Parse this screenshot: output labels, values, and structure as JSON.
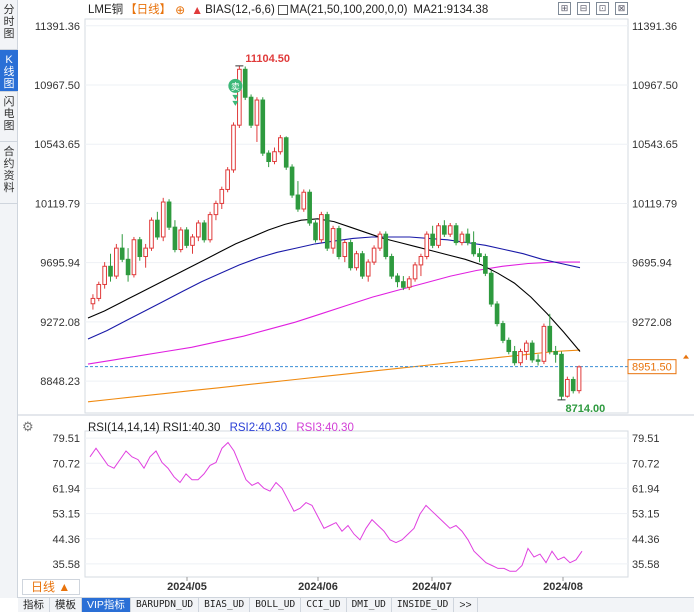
{
  "side_tabs": [
    {
      "label": "分时图"
    },
    {
      "label": "K线图"
    },
    {
      "label": "闪电图"
    },
    {
      "label": "合约资料"
    }
  ],
  "info": {
    "symbol": "LME铜",
    "period": "【日线】",
    "bias": "BIAS(12,-6,6)",
    "ma": "MA(21,50,100,200,0,0)",
    "ma21": "MA21:9134.38"
  },
  "top_tools": [
    {
      "icon": "zoom-in-icon",
      "glyph": "⊞"
    },
    {
      "icon": "zoom-out-icon",
      "glyph": "⊟"
    },
    {
      "icon": "restore-icon",
      "glyph": "⊡"
    },
    {
      "icon": "fullscreen-icon",
      "glyph": "⊠"
    }
  ],
  "price_axis": {
    "left_ticks": [
      "11391.36",
      "10967.50",
      "10543.65",
      "10119.79",
      "9695.94",
      "9272.08",
      "8848.23"
    ],
    "right_ticks": [
      "11391.36",
      "10967.50",
      "10543.65",
      "10119.79",
      "9695.94",
      "9272.08"
    ],
    "current_price": "8951.50",
    "high_label": "11104.50",
    "low_label": "8714.00",
    "sell_marker": "卖"
  },
  "rsi": {
    "title": "RSI(14,14,14)",
    "rsi1": "RSI1:40.30",
    "rsi2": "RSI2:40.30",
    "rsi3": "RSI3:40.30",
    "ticks": [
      "79.51",
      "70.72",
      "61.94",
      "53.15",
      "44.36",
      "35.58"
    ]
  },
  "x_axis": {
    "labels": [
      "2024/05",
      "2024/06",
      "2024/07",
      "2024/08"
    ]
  },
  "period_button": "日线 ▲",
  "bottom_tabs": [
    "指标",
    "模板",
    "VIP指标",
    "BARUPDN_UD",
    "BIAS_UD",
    "BOLL_UD",
    "CCI_UD",
    "DMI_UD",
    "INSIDE_UD",
    ">>"
  ],
  "colors": {
    "up": "#e03b3b",
    "down": "#2e9a3f",
    "ma21": "#000000",
    "ma50": "#1a1aa8",
    "ma100": "#e020e0",
    "ma200": "#f08a10",
    "rsi": "#e040e0",
    "price_line": "#3a8fd6",
    "accent": "#2a6fd6"
  },
  "chart_data": {
    "type": "candlestick",
    "ylim": [
      8620,
      11440
    ],
    "candles": [
      {
        "o": 9402,
        "h": 9470,
        "l": 9360,
        "c": 9440
      },
      {
        "o": 9440,
        "h": 9560,
        "l": 9420,
        "c": 9540
      },
      {
        "o": 9540,
        "h": 9700,
        "l": 9510,
        "c": 9670
      },
      {
        "o": 9670,
        "h": 9760,
        "l": 9560,
        "c": 9600
      },
      {
        "o": 9600,
        "h": 9830,
        "l": 9580,
        "c": 9800
      },
      {
        "o": 9800,
        "h": 9900,
        "l": 9700,
        "c": 9720
      },
      {
        "o": 9720,
        "h": 9800,
        "l": 9560,
        "c": 9610
      },
      {
        "o": 9610,
        "h": 9880,
        "l": 9590,
        "c": 9860
      },
      {
        "o": 9860,
        "h": 9880,
        "l": 9710,
        "c": 9740
      },
      {
        "o": 9740,
        "h": 9830,
        "l": 9660,
        "c": 9800
      },
      {
        "o": 9800,
        "h": 10020,
        "l": 9780,
        "c": 10000
      },
      {
        "o": 10000,
        "h": 10060,
        "l": 9860,
        "c": 9880
      },
      {
        "o": 9880,
        "h": 10160,
        "l": 9850,
        "c": 10130
      },
      {
        "o": 10130,
        "h": 10150,
        "l": 9930,
        "c": 9950
      },
      {
        "o": 9950,
        "h": 10000,
        "l": 9770,
        "c": 9790
      },
      {
        "o": 9790,
        "h": 9950,
        "l": 9770,
        "c": 9930
      },
      {
        "o": 9930,
        "h": 9950,
        "l": 9800,
        "c": 9820
      },
      {
        "o": 9820,
        "h": 9900,
        "l": 9760,
        "c": 9880
      },
      {
        "o": 9880,
        "h": 10000,
        "l": 9850,
        "c": 9980
      },
      {
        "o": 9980,
        "h": 10000,
        "l": 9840,
        "c": 9860
      },
      {
        "o": 9860,
        "h": 10060,
        "l": 9840,
        "c": 10040
      },
      {
        "o": 10040,
        "h": 10140,
        "l": 10000,
        "c": 10120
      },
      {
        "o": 10120,
        "h": 10240,
        "l": 10080,
        "c": 10220
      },
      {
        "o": 10220,
        "h": 10380,
        "l": 10200,
        "c": 10360
      },
      {
        "o": 10360,
        "h": 10700,
        "l": 10340,
        "c": 10680
      },
      {
        "o": 10680,
        "h": 11104.5,
        "l": 10660,
        "c": 11080
      },
      {
        "o": 11080,
        "h": 11100,
        "l": 10860,
        "c": 10880
      },
      {
        "o": 10880,
        "h": 10900,
        "l": 10660,
        "c": 10680
      },
      {
        "o": 10680,
        "h": 10880,
        "l": 10560,
        "c": 10860
      },
      {
        "o": 10860,
        "h": 10880,
        "l": 10460,
        "c": 10480
      },
      {
        "o": 10480,
        "h": 10500,
        "l": 10380,
        "c": 10420
      },
      {
        "o": 10420,
        "h": 10520,
        "l": 10400,
        "c": 10490
      },
      {
        "o": 10490,
        "h": 10610,
        "l": 10470,
        "c": 10590
      },
      {
        "o": 10590,
        "h": 10600,
        "l": 10360,
        "c": 10380
      },
      {
        "o": 10380,
        "h": 10400,
        "l": 10160,
        "c": 10180
      },
      {
        "o": 10180,
        "h": 10280,
        "l": 10060,
        "c": 10080
      },
      {
        "o": 10080,
        "h": 10220,
        "l": 10060,
        "c": 10200
      },
      {
        "o": 10200,
        "h": 10220,
        "l": 9960,
        "c": 9980
      },
      {
        "o": 9980,
        "h": 10000,
        "l": 9840,
        "c": 9860
      },
      {
        "o": 9860,
        "h": 10060,
        "l": 9840,
        "c": 10040
      },
      {
        "o": 10040,
        "h": 10060,
        "l": 9780,
        "c": 9800
      },
      {
        "o": 9800,
        "h": 9960,
        "l": 9760,
        "c": 9940
      },
      {
        "o": 9940,
        "h": 9960,
        "l": 9720,
        "c": 9740
      },
      {
        "o": 9740,
        "h": 9860,
        "l": 9700,
        "c": 9840
      },
      {
        "o": 9840,
        "h": 9860,
        "l": 9640,
        "c": 9660
      },
      {
        "o": 9660,
        "h": 9780,
        "l": 9640,
        "c": 9760
      },
      {
        "o": 9760,
        "h": 9780,
        "l": 9580,
        "c": 9600
      },
      {
        "o": 9600,
        "h": 9720,
        "l": 9560,
        "c": 9700
      },
      {
        "o": 9700,
        "h": 9820,
        "l": 9680,
        "c": 9800
      },
      {
        "o": 9800,
        "h": 9920,
        "l": 9780,
        "c": 9900
      },
      {
        "o": 9900,
        "h": 9920,
        "l": 9720,
        "c": 9740
      },
      {
        "o": 9740,
        "h": 9760,
        "l": 9580,
        "c": 9600
      },
      {
        "o": 9600,
        "h": 9620,
        "l": 9520,
        "c": 9560
      },
      {
        "o": 9560,
        "h": 9600,
        "l": 9500,
        "c": 9520
      },
      {
        "o": 9520,
        "h": 9600,
        "l": 9500,
        "c": 9580
      },
      {
        "o": 9580,
        "h": 9700,
        "l": 9560,
        "c": 9680
      },
      {
        "o": 9680,
        "h": 9760,
        "l": 9600,
        "c": 9740
      },
      {
        "o": 9740,
        "h": 9920,
        "l": 9720,
        "c": 9900
      },
      {
        "o": 9900,
        "h": 9960,
        "l": 9800,
        "c": 9820
      },
      {
        "o": 9820,
        "h": 9980,
        "l": 9800,
        "c": 9960
      },
      {
        "o": 9960,
        "h": 10000,
        "l": 9880,
        "c": 9900
      },
      {
        "o": 9900,
        "h": 9980,
        "l": 9880,
        "c": 9960
      },
      {
        "o": 9960,
        "h": 9980,
        "l": 9820,
        "c": 9840
      },
      {
        "o": 9840,
        "h": 9920,
        "l": 9820,
        "c": 9900
      },
      {
        "o": 9900,
        "h": 9940,
        "l": 9820,
        "c": 9840
      },
      {
        "o": 9840,
        "h": 9920,
        "l": 9740,
        "c": 9760
      },
      {
        "o": 9760,
        "h": 9800,
        "l": 9700,
        "c": 9740
      },
      {
        "o": 9740,
        "h": 9760,
        "l": 9600,
        "c": 9620
      },
      {
        "o": 9620,
        "h": 9640,
        "l": 9380,
        "c": 9400
      },
      {
        "o": 9400,
        "h": 9420,
        "l": 9240,
        "c": 9260
      },
      {
        "o": 9260,
        "h": 9280,
        "l": 9120,
        "c": 9140
      },
      {
        "o": 9140,
        "h": 9160,
        "l": 9040,
        "c": 9060
      },
      {
        "o": 9060,
        "h": 9100,
        "l": 8960,
        "c": 8980
      },
      {
        "o": 8980,
        "h": 9080,
        "l": 8960,
        "c": 9060
      },
      {
        "o": 9060,
        "h": 9140,
        "l": 9000,
        "c": 9120
      },
      {
        "o": 9120,
        "h": 9140,
        "l": 8980,
        "c": 9000
      },
      {
        "o": 9000,
        "h": 9040,
        "l": 8960,
        "c": 8990
      },
      {
        "o": 8990,
        "h": 9260,
        "l": 8970,
        "c": 9240
      },
      {
        "o": 9240,
        "h": 9330,
        "l": 9040,
        "c": 9060
      },
      {
        "o": 9060,
        "h": 9100,
        "l": 8980,
        "c": 9040
      },
      {
        "o": 9040,
        "h": 9060,
        "l": 8714,
        "c": 8740
      },
      {
        "o": 8740,
        "h": 8880,
        "l": 8730,
        "c": 8860
      },
      {
        "o": 8860,
        "h": 8880,
        "l": 8760,
        "c": 8780
      },
      {
        "o": 8780,
        "h": 8960,
        "l": 8760,
        "c": 8950
      }
    ],
    "ma21": [
      9300,
      9350,
      9410,
      9470,
      9530,
      9590,
      9650,
      9710,
      9770,
      9830,
      9880,
      9930,
      9970,
      10000,
      10010,
      9990,
      9950,
      9910,
      9870,
      9840,
      9810,
      9780,
      9750,
      9720,
      9680,
      9620,
      9550,
      9450,
      9330,
      9200,
      9060
    ],
    "ma50": [
      9150,
      9210,
      9280,
      9350,
      9420,
      9490,
      9560,
      9620,
      9680,
      9730,
      9770,
      9800,
      9830,
      9850,
      9870,
      9880,
      9880,
      9880,
      9870,
      9860,
      9840,
      9820,
      9790,
      9760,
      9720,
      9690,
      9660
    ],
    "ma100": [
      8970,
      9000,
      9030,
      9060,
      9090,
      9130,
      9170,
      9220,
      9270,
      9330,
      9390,
      9450,
      9500,
      9550,
      9600,
      9640,
      9670,
      9690,
      9700,
      9700
    ],
    "ma200": [
      8700,
      8720,
      8740,
      8760,
      8780,
      8800,
      8820,
      8840,
      8860,
      8880,
      8900,
      8920,
      8940,
      8960,
      8980,
      9000,
      9020,
      9040,
      9060,
      9070
    ],
    "rsi_ylim": [
      31,
      82
    ],
    "rsi_values": [
      73,
      76,
      73,
      70,
      69,
      72,
      75,
      73,
      72,
      69,
      73,
      75,
      71,
      69,
      66,
      64,
      67,
      65,
      65,
      67,
      70,
      71,
      76,
      78,
      75,
      70,
      65,
      63,
      64,
      62,
      61,
      64,
      62,
      58,
      54,
      55,
      57,
      56,
      52,
      48,
      49,
      50,
      47,
      49,
      46,
      44,
      48,
      51,
      49,
      47,
      44,
      43,
      44,
      46,
      48,
      53,
      56,
      54,
      52,
      50,
      48,
      49,
      47,
      44,
      40,
      38,
      36,
      35,
      34,
      34,
      33,
      33,
      35,
      41,
      38,
      39,
      36,
      40,
      37,
      38,
      36,
      37,
      40
    ]
  }
}
